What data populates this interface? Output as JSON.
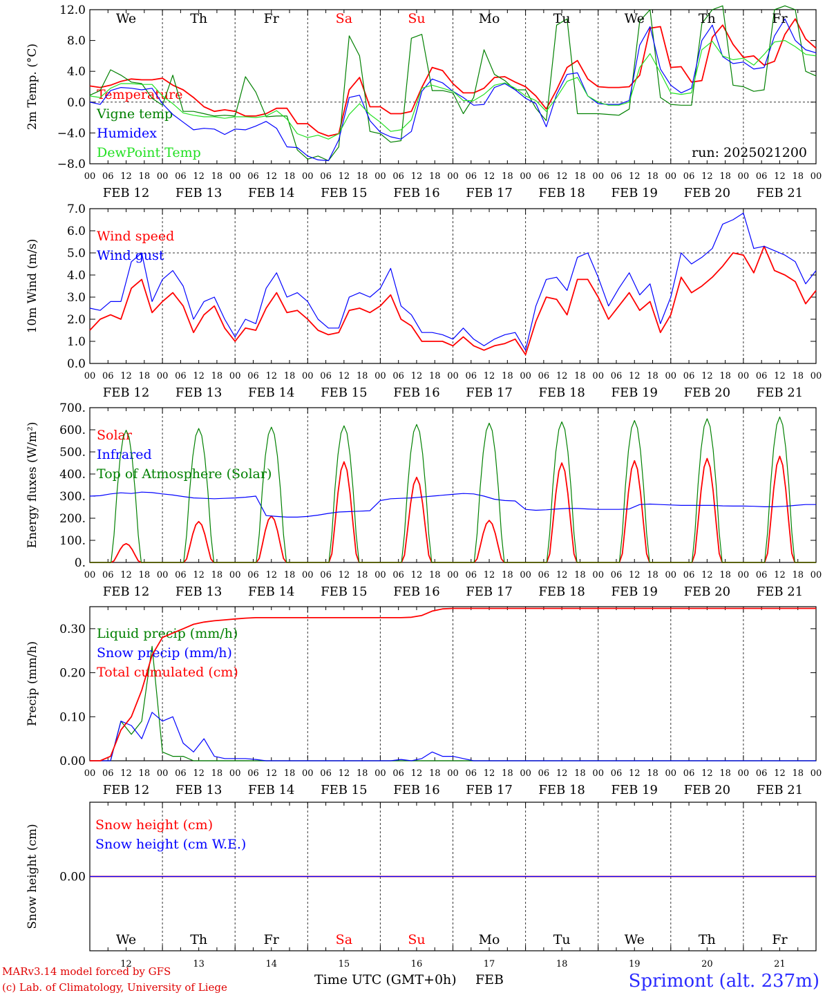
{
  "chart_data": [
    {
      "type": "line",
      "ylabel": "2m Temp. (°C)",
      "ylim": [
        -8,
        12
      ],
      "yticks": [
        -8,
        -4,
        0,
        4,
        8,
        12
      ],
      "ytick_labels": [
        "−8.0",
        "−4.0",
        "0.0",
        "4.0",
        "8.0",
        "12.0"
      ],
      "x_start": "2025-02-12T00Z",
      "x_days": 10,
      "x_step_hours": 6,
      "run_label": "run: 2025021200",
      "series": [
        {
          "name": "Temperature",
          "color": "#ff0000",
          "values": [
            2.1,
            1.9,
            2.2,
            2.7,
            3.0,
            2.9,
            2.9,
            3.1,
            2.2,
            1.6,
            0.6,
            -0.6,
            -1.2,
            -1.0,
            -1.2,
            -1.8,
            -1.8,
            -1.5,
            -0.8,
            -0.8,
            -2.8,
            -2.8,
            -3.9,
            -4.4,
            -4.1,
            1.6,
            3.2,
            -0.6,
            -0.6,
            -1.5,
            -1.5,
            -1.2,
            1.9,
            4.5,
            4.1,
            2.4,
            1.2,
            1.2,
            1.8,
            3.2,
            3.3,
            2.6,
            2.0,
            0.8,
            -0.9,
            1.6,
            4.5,
            5.4,
            3.0,
            2.0,
            1.9,
            1.9,
            2.0,
            3.5,
            9.6,
            9.8,
            4.5,
            4.6,
            2.6,
            2.8,
            8.4,
            10.0,
            7.5,
            5.8,
            6.0,
            4.8,
            5.3,
            8.8,
            10.8,
            8.2,
            7.0
          ]
        },
        {
          "name": "Vigne temp",
          "color": "#008000",
          "values": [
            0.9,
            1.5,
            4.2,
            3.5,
            2.6,
            2.4,
            0.5,
            -0.4,
            3.5,
            -1.2,
            -1.2,
            -1.5,
            -1.8,
            -1.7,
            -1.8,
            3.3,
            1.3,
            -1.9,
            -1.8,
            -1.8,
            -6.2,
            -7.4,
            -7.0,
            -7.6,
            -5.8,
            8.6,
            6.0,
            -3.8,
            -4.1,
            -5.2,
            -5.0,
            8.3,
            8.8,
            1.5,
            1.5,
            1.2,
            -1.5,
            0.6,
            6.8,
            3.6,
            2.8,
            1.6,
            1.6,
            -0.8,
            -2.4,
            10.0,
            10.8,
            -1.5,
            -1.5,
            -1.5,
            -1.6,
            -1.7,
            -0.9,
            10.5,
            12.0,
            0.6,
            -0.3,
            -0.4,
            -0.4,
            10.2,
            12.0,
            12.5,
            2.2,
            2.0,
            1.4,
            1.6,
            12.0,
            12.5,
            12.0,
            4.0,
            3.4
          ]
        },
        {
          "name": "Humidex",
          "color": "#0000ff",
          "values": [
            0.0,
            -0.3,
            1.5,
            1.9,
            1.8,
            1.6,
            1.8,
            -0.2,
            -1.6,
            -2.6,
            -3.6,
            -3.4,
            -3.5,
            -4.2,
            -3.5,
            -3.6,
            -3.1,
            -2.5,
            -3.4,
            -5.8,
            -5.9,
            -7.0,
            -7.5,
            -7.6,
            -4.9,
            0.6,
            0.9,
            -2.4,
            -3.9,
            -4.5,
            -4.8,
            -3.8,
            1.4,
            3.0,
            2.5,
            1.4,
            0.6,
            -0.4,
            -0.3,
            1.9,
            2.4,
            1.6,
            0.5,
            -0.2,
            -3.2,
            1.0,
            3.6,
            3.8,
            0.8,
            -0.2,
            -0.3,
            -0.3,
            0.2,
            7.4,
            9.8,
            4.3,
            2.2,
            1.2,
            1.8,
            8.0,
            10.0,
            5.9,
            5.0,
            5.2,
            4.3,
            4.5,
            8.6,
            10.8,
            8.0,
            6.8,
            6.4
          ]
        },
        {
          "name": "DewPoint Temp",
          "color": "#22e022",
          "values": [
            0.8,
            0.6,
            1.8,
            2.4,
            2.4,
            2.3,
            2.3,
            0.8,
            -0.2,
            -1.4,
            -1.7,
            -1.9,
            -1.9,
            -2.1,
            -1.9,
            -1.9,
            -2.0,
            -1.8,
            -1.1,
            -2.2,
            -4.1,
            -4.6,
            -4.3,
            -4.8,
            -4.1,
            -1.6,
            -0.2,
            -1.6,
            -2.6,
            -3.8,
            -3.6,
            -2.3,
            1.8,
            2.2,
            1.8,
            1.4,
            0.2,
            0.2,
            1.0,
            2.2,
            2.5,
            1.8,
            0.8,
            0.2,
            -1.2,
            0.6,
            2.7,
            3.2,
            0.8,
            0.0,
            -0.4,
            -0.4,
            0.0,
            4.5,
            6.3,
            3.8,
            1.2,
            1.0,
            1.2,
            6.8,
            7.9,
            6.0,
            5.5,
            5.7,
            4.8,
            6.2,
            7.8,
            8.0,
            7.2,
            6.2,
            6.0
          ]
        }
      ]
    },
    {
      "type": "line",
      "ylabel": "10m Wind (m/s)",
      "ylim": [
        0,
        7
      ],
      "yticks": [
        0,
        1,
        2,
        3,
        4,
        5,
        6,
        7
      ],
      "ytick_labels": [
        "0.0",
        "1.0",
        "2.0",
        "3.0",
        "4.0",
        "5.0",
        "6.0",
        "7.0"
      ],
      "series": [
        {
          "name": "Wind speed",
          "color": "#ff0000",
          "values": [
            1.5,
            2.0,
            2.2,
            2.0,
            3.4,
            3.8,
            2.3,
            2.8,
            3.2,
            2.6,
            1.4,
            2.2,
            2.6,
            1.6,
            1.0,
            1.6,
            1.5,
            2.5,
            3.2,
            2.3,
            2.4,
            2.0,
            1.5,
            1.3,
            1.4,
            2.4,
            2.5,
            2.3,
            2.6,
            3.1,
            2.0,
            1.7,
            1.0,
            1.0,
            1.0,
            0.8,
            1.2,
            0.8,
            0.6,
            0.8,
            0.9,
            1.1,
            0.4,
            1.9,
            3.0,
            2.9,
            2.2,
            3.8,
            3.8,
            3.0,
            2.0,
            2.6,
            3.2,
            2.4,
            2.8,
            1.4,
            2.2,
            3.9,
            3.2,
            3.5,
            3.9,
            4.4,
            5.0,
            4.9,
            4.1,
            5.3,
            4.2,
            4.0,
            3.7,
            2.7,
            3.3
          ]
        },
        {
          "name": "Wind gust",
          "color": "#0000ff",
          "values": [
            2.5,
            2.4,
            2.8,
            2.8,
            4.6,
            5.0,
            2.8,
            3.8,
            4.2,
            3.5,
            2.0,
            2.8,
            3.0,
            2.0,
            1.2,
            2.0,
            1.8,
            3.4,
            4.1,
            3.0,
            3.2,
            2.8,
            2.0,
            1.6,
            1.6,
            3.0,
            3.2,
            3.0,
            3.4,
            4.3,
            2.6,
            2.2,
            1.4,
            1.4,
            1.3,
            1.1,
            1.6,
            1.1,
            0.8,
            1.1,
            1.3,
            1.4,
            0.6,
            2.6,
            3.8,
            3.9,
            3.3,
            4.8,
            5.0,
            3.9,
            2.6,
            3.4,
            4.1,
            3.1,
            3.6,
            1.8,
            3.0,
            5.0,
            4.5,
            4.8,
            5.2,
            6.3,
            6.5,
            6.8,
            5.2,
            5.3,
            5.1,
            4.9,
            4.6,
            3.6,
            4.2
          ]
        }
      ]
    },
    {
      "type": "line",
      "ylabel": "Energy fluxes (W/m²)",
      "ylim": [
        0,
        700
      ],
      "yticks": [
        0,
        100,
        200,
        300,
        400,
        500,
        600,
        700
      ],
      "ytick_labels": [
        "0.",
        "100.",
        "200.",
        "300.",
        "400.",
        "500.",
        "600.",
        "700."
      ],
      "series": [
        {
          "name": "Solar",
          "color": "#ff0000",
          "daily_peak": [
            85,
            185,
            210,
            455,
            385,
            190,
            450,
            460,
            470,
            480
          ]
        },
        {
          "name": "Infrared",
          "color": "#0000ff",
          "values": [
            300,
            302,
            310,
            315,
            312,
            318,
            316,
            310,
            305,
            298,
            292,
            290,
            288,
            290,
            292,
            295,
            300,
            212,
            208,
            205,
            205,
            208,
            214,
            222,
            228,
            230,
            232,
            234,
            280,
            288,
            290,
            292,
            296,
            300,
            304,
            308,
            312,
            310,
            300,
            286,
            280,
            278,
            240,
            236,
            238,
            242,
            244,
            244,
            242,
            240,
            240,
            240,
            242,
            262,
            264,
            262,
            260,
            258,
            258,
            258,
            258,
            256,
            255,
            255,
            254,
            252,
            252,
            254,
            258,
            262,
            262
          ]
        },
        {
          "name": "Top of Atmosphere (Solar)",
          "color": "#008000",
          "daily_peak": [
            598,
            606,
            612,
            618,
            624,
            630,
            636,
            642,
            650,
            658
          ]
        }
      ]
    },
    {
      "type": "line",
      "ylabel": "Precip (mm/h)",
      "ylim": [
        0,
        0.35
      ],
      "yticks": [
        0,
        0.1,
        0.2,
        0.3
      ],
      "ytick_labels": [
        "0.00",
        "0.10",
        "0.20",
        "0.30"
      ],
      "series": [
        {
          "name": "Liquid precip (mm/h)",
          "color": "#008000",
          "values": [
            0,
            0,
            0,
            0.09,
            0.06,
            0.09,
            0.26,
            0.02,
            0.01,
            0.01,
            0,
            0,
            0,
            0,
            0,
            0,
            0,
            0,
            0,
            0,
            0,
            0,
            0,
            0,
            0,
            0,
            0,
            0,
            0,
            0,
            0,
            0,
            0,
            0,
            0,
            0,
            0,
            0,
            0,
            0,
            0,
            0,
            0,
            0,
            0,
            0,
            0,
            0,
            0,
            0,
            0,
            0,
            0,
            0,
            0,
            0,
            0,
            0,
            0,
            0,
            0,
            0,
            0,
            0,
            0,
            0,
            0,
            0,
            0,
            0,
            0
          ]
        },
        {
          "name": "Snow precip (mm/h)",
          "color": "#0000ff",
          "values": [
            0,
            0,
            0,
            0.09,
            0.08,
            0.05,
            0.11,
            0.09,
            0.1,
            0.04,
            0.02,
            0.05,
            0.01,
            0.005,
            0.005,
            0.005,
            0.003,
            0,
            0,
            0,
            0,
            0,
            0,
            0,
            0,
            0,
            0,
            0,
            0,
            0,
            0.003,
            0,
            0.005,
            0.02,
            0.01,
            0.01,
            0.005,
            0,
            0,
            0,
            0,
            0,
            0,
            0,
            0,
            0,
            0,
            0,
            0,
            0,
            0,
            0,
            0,
            0,
            0,
            0,
            0,
            0,
            0,
            0,
            0,
            0,
            0,
            0,
            0,
            0,
            0,
            0,
            0,
            0,
            0
          ]
        },
        {
          "name": "Total cumulated (cm)",
          "color": "#ff0000",
          "values": [
            0,
            0,
            0.01,
            0.07,
            0.1,
            0.16,
            0.24,
            0.28,
            0.29,
            0.3,
            0.31,
            0.315,
            0.318,
            0.32,
            0.322,
            0.324,
            0.325,
            0.325,
            0.325,
            0.325,
            0.325,
            0.325,
            0.325,
            0.325,
            0.325,
            0.325,
            0.325,
            0.325,
            0.325,
            0.325,
            0.325,
            0.326,
            0.33,
            0.34,
            0.345,
            0.346,
            0.346,
            0.346,
            0.346,
            0.346,
            0.346,
            0.346,
            0.346,
            0.346,
            0.346,
            0.346,
            0.346,
            0.346,
            0.346,
            0.346,
            0.346,
            0.346,
            0.346,
            0.346,
            0.346,
            0.346,
            0.346,
            0.346,
            0.346,
            0.346,
            0.346,
            0.346,
            0.346,
            0.346,
            0.346,
            0.346,
            0.346,
            0.346,
            0.346,
            0.346,
            0.346
          ]
        }
      ]
    },
    {
      "type": "line",
      "ylabel": "Snow height (cm)",
      "ylim": [
        -1,
        1
      ],
      "yticks": [
        0
      ],
      "ytick_labels": [
        "0.00"
      ],
      "series": [
        {
          "name": "Snow height (cm)",
          "color": "#ff0000",
          "values": [
            0,
            0
          ]
        },
        {
          "name": "Snow height (cm W.E.)",
          "color": "#0000ff",
          "values": [
            0,
            0
          ]
        }
      ]
    }
  ],
  "axis": {
    "hour_ticks": [
      "00",
      "06",
      "12",
      "18"
    ],
    "hour_tick_end": "00",
    "dates": [
      "FEB 12",
      "FEB 13",
      "FEB 14",
      "FEB 15",
      "FEB 16",
      "FEB 17",
      "FEB 18",
      "FEB 19",
      "FEB 20",
      "FEB 21"
    ],
    "weekdays": [
      "We",
      "Th",
      "Fr",
      "Sa",
      "Su",
      "Mo",
      "Tu",
      "We",
      "Th",
      "Fr"
    ],
    "weekend_flags": [
      false,
      false,
      false,
      true,
      true,
      false,
      false,
      false,
      false,
      false
    ],
    "day_numbers": [
      "12",
      "13",
      "14",
      "15",
      "16",
      "17",
      "18",
      "19",
      "20",
      "21"
    ],
    "month": "FEB",
    "x_title": "Time UTC (GMT+0h)"
  },
  "footer": {
    "credit_line1": "MARv3.14 model forced by GFS",
    "credit_line2": "(c) Lab. of Climatology, University of Liege",
    "station": "Sprimont (alt. 237m)"
  },
  "colors": {
    "weekday": "#000000",
    "weekend": "#ff0000",
    "station": "#2a2aff",
    "credit": "#e00000"
  }
}
